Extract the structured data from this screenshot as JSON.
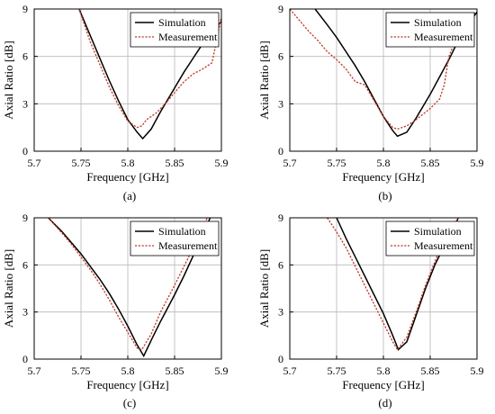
{
  "chart_data": [
    {
      "type": "line",
      "caption": "(a)",
      "xlabel": "Frequency [GHz]",
      "ylabel": "Axial Ratio [dB]",
      "xlim": [
        5.7,
        5.9
      ],
      "ylim": [
        0,
        9
      ],
      "xticks": [
        "5.7",
        "5.75",
        "5.8",
        "5.85",
        "5.9"
      ],
      "yticks": [
        "0",
        "3",
        "6",
        "9"
      ],
      "grid": true,
      "legend": "top-right",
      "series": [
        {
          "name": "Simulation",
          "color": "#000000",
          "style": "solid",
          "x": [
            5.748,
            5.76,
            5.77,
            5.78,
            5.79,
            5.8,
            5.81,
            5.816,
            5.825,
            5.835,
            5.85,
            5.86,
            5.87,
            5.88,
            5.89,
            5.9
          ],
          "y": [
            9.0,
            7.3,
            5.9,
            4.5,
            3.2,
            2.0,
            1.2,
            0.8,
            1.4,
            2.5,
            4.0,
            5.0,
            5.9,
            6.8,
            7.6,
            8.2
          ]
        },
        {
          "name": "Measurement",
          "color": "#c0392b",
          "style": "dotted",
          "x": [
            5.748,
            5.76,
            5.77,
            5.78,
            5.79,
            5.8,
            5.81,
            5.815,
            5.82,
            5.83,
            5.84,
            5.85,
            5.86,
            5.87,
            5.88,
            5.89,
            5.9
          ],
          "y": [
            9.0,
            6.9,
            5.5,
            4.1,
            2.9,
            1.9,
            1.5,
            1.6,
            2.0,
            2.4,
            3.0,
            3.7,
            4.4,
            4.9,
            5.2,
            5.6,
            8.5
          ]
        }
      ]
    },
    {
      "type": "line",
      "caption": "(b)",
      "xlabel": "Frequency [GHz]",
      "ylabel": "Axial Ratio [dB]",
      "xlim": [
        5.7,
        5.9
      ],
      "ylim": [
        0,
        9
      ],
      "xticks": [
        "5.7",
        "5.75",
        "5.8",
        "5.85",
        "5.9"
      ],
      "yticks": [
        "0",
        "3",
        "6",
        "9"
      ],
      "grid": true,
      "legend": "top-right",
      "series": [
        {
          "name": "Simulation",
          "color": "#000000",
          "style": "solid",
          "x": [
            5.727,
            5.74,
            5.75,
            5.76,
            5.77,
            5.78,
            5.79,
            5.8,
            5.81,
            5.815,
            5.825,
            5.835,
            5.85,
            5.86,
            5.87,
            5.88,
            5.89,
            5.9
          ],
          "y": [
            9.0,
            8.0,
            7.2,
            6.3,
            5.4,
            4.4,
            3.3,
            2.2,
            1.3,
            0.95,
            1.2,
            2.1,
            3.6,
            4.7,
            5.8,
            7.0,
            8.0,
            8.8
          ]
        },
        {
          "name": "Measurement",
          "color": "#c0392b",
          "style": "dotted",
          "x": [
            5.7,
            5.71,
            5.72,
            5.73,
            5.74,
            5.75,
            5.76,
            5.77,
            5.78,
            5.79,
            5.8,
            5.81,
            5.815,
            5.825,
            5.835,
            5.85,
            5.86,
            5.865,
            5.87,
            5.88,
            5.89,
            5.9
          ],
          "y": [
            9.0,
            8.3,
            7.6,
            7.0,
            6.3,
            5.8,
            5.2,
            4.4,
            4.2,
            3.2,
            2.2,
            1.5,
            1.4,
            1.6,
            2.0,
            2.7,
            3.3,
            4.2,
            6.0,
            7.5,
            8.5,
            8.8
          ]
        }
      ]
    },
    {
      "type": "line",
      "caption": "(c)",
      "xlabel": "Frequency [GHz]",
      "ylabel": "Axial Ratio [dB]",
      "xlim": [
        5.7,
        5.9
      ],
      "ylim": [
        0,
        9
      ],
      "xticks": [
        "5.7",
        "5.75",
        "5.8",
        "5.85",
        "5.9"
      ],
      "yticks": [
        "0",
        "3",
        "6",
        "9"
      ],
      "grid": true,
      "legend": "top-right",
      "series": [
        {
          "name": "Simulation",
          "color": "#000000",
          "style": "solid",
          "x": [
            5.715,
            5.73,
            5.74,
            5.75,
            5.76,
            5.77,
            5.78,
            5.79,
            5.8,
            5.81,
            5.817,
            5.825,
            5.835,
            5.85,
            5.86,
            5.87,
            5.88,
            5.888
          ],
          "y": [
            9.0,
            8.1,
            7.4,
            6.7,
            5.9,
            5.1,
            4.2,
            3.2,
            2.1,
            0.9,
            0.2,
            1.2,
            2.4,
            4.1,
            5.3,
            6.6,
            7.9,
            9.0
          ]
        },
        {
          "name": "Measurement",
          "color": "#c0392b",
          "style": "dotted",
          "x": [
            5.715,
            5.73,
            5.74,
            5.75,
            5.76,
            5.77,
            5.78,
            5.79,
            5.8,
            5.81,
            5.815,
            5.825,
            5.835,
            5.85,
            5.86,
            5.87,
            5.88,
            5.885
          ],
          "y": [
            9.0,
            8.0,
            7.3,
            6.5,
            5.7,
            4.8,
            3.8,
            2.7,
            1.7,
            0.7,
            0.6,
            1.6,
            3.0,
            4.7,
            5.9,
            7.1,
            8.4,
            9.0
          ]
        }
      ]
    },
    {
      "type": "line",
      "caption": "(d)",
      "xlabel": "Frequency [GHz]",
      "ylabel": "Axial Ratio [dB]",
      "xlim": [
        5.7,
        5.9
      ],
      "ylim": [
        0,
        9
      ],
      "xticks": [
        "5.7",
        "5.75",
        "5.8",
        "5.85",
        "5.9"
      ],
      "yticks": [
        "0",
        "3",
        "6",
        "9"
      ],
      "grid": true,
      "legend": "top-right",
      "series": [
        {
          "name": "Simulation",
          "color": "#000000",
          "style": "solid",
          "x": [
            5.75,
            5.76,
            5.77,
            5.78,
            5.79,
            5.8,
            5.81,
            5.816,
            5.825,
            5.835,
            5.845,
            5.855,
            5.865,
            5.875,
            5.88
          ],
          "y": [
            9.0,
            7.7,
            6.5,
            5.3,
            4.1,
            2.9,
            1.5,
            0.6,
            1.1,
            2.8,
            4.5,
            6.0,
            7.2,
            8.3,
            9.0
          ]
        },
        {
          "name": "Measurement",
          "color": "#c0392b",
          "style": "dotted",
          "x": [
            5.74,
            5.75,
            5.76,
            5.77,
            5.78,
            5.79,
            5.8,
            5.81,
            5.815,
            5.825,
            5.835,
            5.845,
            5.855,
            5.865,
            5.875,
            5.88
          ],
          "y": [
            9.0,
            8.1,
            7.1,
            5.9,
            4.7,
            3.5,
            2.3,
            1.1,
            0.6,
            1.4,
            3.0,
            4.7,
            6.2,
            7.6,
            8.5,
            9.0
          ]
        }
      ]
    }
  ]
}
